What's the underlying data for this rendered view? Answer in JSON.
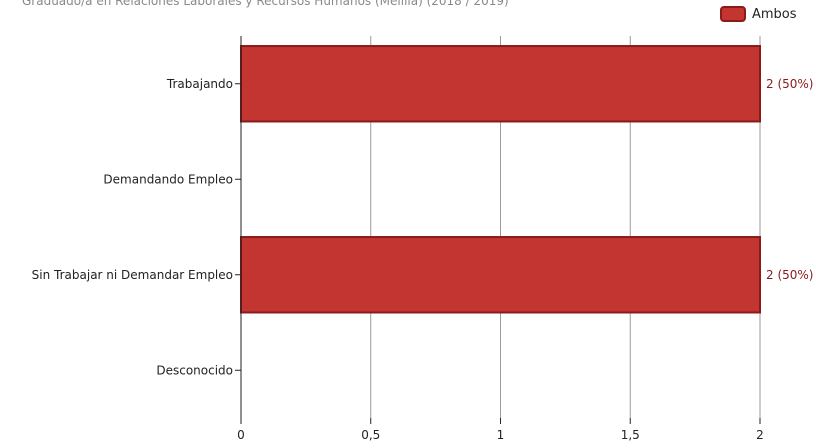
{
  "chart_data": {
    "type": "bar",
    "orientation": "horizontal",
    "title": "Graduado/a en Relaciones Laborales y Recursos Humanos (Melilla) (2018 / 2019)",
    "xlabel": "",
    "ylabel": "",
    "categories": [
      "Trabajando",
      "Demandando Empleo",
      "Sin Trabajar ni Demandar Empleo",
      "Desconocido"
    ],
    "series": [
      {
        "name": "Ambos",
        "color": "#c23531",
        "values": [
          2,
          0,
          2,
          0
        ],
        "labels": [
          "2 (50%)",
          "",
          "2 (50%)",
          ""
        ]
      }
    ],
    "xlim": [
      0,
      2
    ],
    "xticks": [
      0,
      0.5,
      1,
      1.5,
      2
    ],
    "xtick_labels": [
      "0",
      "0,5",
      "1",
      "1,5",
      "2"
    ],
    "grid": "vertical",
    "legend": "top-right"
  }
}
